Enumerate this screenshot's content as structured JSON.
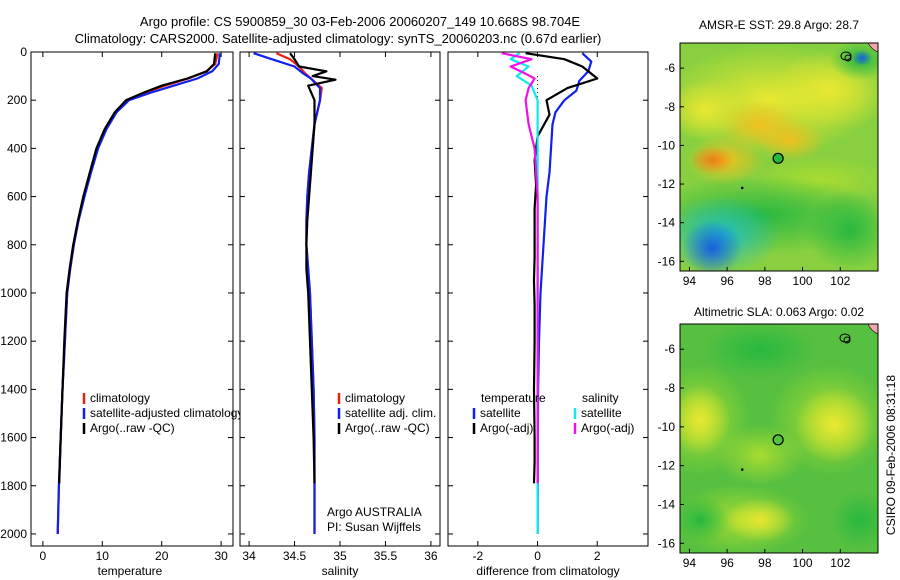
{
  "header": {
    "line1": "Argo profile: CS 5900859_30 03-Feb-2006 20060207_149 10.668S 98.704E",
    "line2": "Climatology: CARS2000. Satellite-adjusted climatology: synTS_20060203.nc (0.67d earlier)"
  },
  "colors": {
    "red": "#e8200c",
    "blue": "#1020ee",
    "black": "#000000",
    "cyan": "#10e8f0",
    "magenta": "#f010e8"
  },
  "chart_data": [
    {
      "type": "line",
      "id": "temperature",
      "xlabel": "temperature",
      "ylabel": "",
      "xlim": [
        -2,
        32
      ],
      "ylim": [
        2050,
        0
      ],
      "xticks": [
        "0",
        "10",
        "20",
        "30"
      ],
      "xtick_values": [
        0,
        10,
        20,
        30
      ],
      "yticks": [
        "0",
        "200",
        "400",
        "600",
        "800",
        "1000",
        "1200",
        "1400",
        "1600",
        "1800",
        "2000"
      ],
      "ytick_values": [
        0,
        200,
        400,
        600,
        800,
        1000,
        1200,
        1400,
        1600,
        1800,
        2000
      ],
      "legend": [
        "climatology",
        "satellite-adjusted climatology",
        "Argo(..raw -QC)"
      ],
      "legend_colors": [
        "red",
        "blue",
        "black"
      ],
      "series": [
        {
          "name": "climatology",
          "color": "red",
          "x": [
            29.4,
            29.0,
            27.5,
            24.5,
            20.5,
            17,
            14,
            12.2,
            10.6,
            9.2,
            8.0,
            6.9,
            6.0,
            5.2,
            4.6,
            4.1,
            3.7,
            3.3,
            3.0,
            2.7,
            2.5
          ],
          "y": [
            5,
            50,
            80,
            110,
            140,
            170,
            200,
            250,
            320,
            400,
            500,
            600,
            700,
            800,
            900,
            1000,
            1200,
            1400,
            1600,
            1800,
            2000
          ]
        },
        {
          "name": "satellite-adjusted climatology",
          "color": "blue",
          "x": [
            29.8,
            29.6,
            28.5,
            26,
            22,
            18,
            14.5,
            12.4,
            10.7,
            9.3,
            8.1,
            7.0,
            6.0,
            5.2,
            4.6,
            4.1,
            3.7,
            3.3,
            3.0,
            2.7,
            2.5
          ],
          "y": [
            5,
            50,
            80,
            110,
            140,
            170,
            200,
            250,
            320,
            400,
            500,
            600,
            700,
            800,
            900,
            1000,
            1200,
            1400,
            1600,
            1800,
            2000
          ]
        },
        {
          "name": "Argo(..raw -QC)",
          "color": "black",
          "x": [
            29.0,
            28.8,
            27.6,
            24.3,
            20,
            16.8,
            14,
            12.1,
            10.4,
            9.0,
            7.9,
            6.8,
            5.9,
            5.1,
            4.5,
            4.0,
            3.6,
            3.3,
            3.0,
            2.75
          ],
          "y": [
            5,
            50,
            80,
            110,
            140,
            170,
            200,
            250,
            320,
            400,
            500,
            600,
            700,
            800,
            900,
            1000,
            1200,
            1400,
            1600,
            1790
          ]
        }
      ]
    },
    {
      "type": "line",
      "id": "salinity",
      "xlabel": "salinity",
      "xlim": [
        33.9,
        36.1
      ],
      "ylim": [
        2050,
        0
      ],
      "xticks": [
        "34",
        "34.5",
        "35",
        "35.5",
        "36"
      ],
      "xtick_values": [
        34,
        34.5,
        35,
        35.5,
        36
      ],
      "legend": [
        "climatology",
        "satellite adj. clim.",
        "Argo(..raw -QC)"
      ],
      "legend_colors": [
        "red",
        "blue",
        "black"
      ],
      "annotations": [
        "Argo AUSTRALIA",
        "PI: Susan Wijffels"
      ],
      "series": [
        {
          "name": "climatology",
          "color": "red",
          "x": [
            34.3,
            34.45,
            34.55,
            34.62,
            34.68,
            34.8,
            34.78,
            34.72,
            34.69,
            34.66,
            34.64,
            34.63,
            34.63,
            34.65,
            34.67,
            34.69,
            34.71,
            34.72,
            34.72
          ],
          "y": [
            5,
            30,
            60,
            90,
            110,
            150,
            200,
            300,
            400,
            500,
            600,
            700,
            800,
            900,
            1000,
            1200,
            1400,
            1600,
            2000
          ]
        },
        {
          "name": "satellite adj. clim.",
          "color": "blue",
          "x": [
            34.05,
            34.25,
            34.5,
            34.6,
            34.68,
            34.78,
            34.78,
            34.72,
            34.69,
            34.66,
            34.64,
            34.63,
            34.63,
            34.65,
            34.67,
            34.69,
            34.71,
            34.72,
            34.72
          ],
          "y": [
            5,
            30,
            60,
            90,
            110,
            150,
            200,
            300,
            400,
            500,
            600,
            700,
            800,
            900,
            1000,
            1200,
            1400,
            1600,
            2000
          ]
        },
        {
          "name": "Argo(..raw -QC)",
          "color": "black",
          "x": [
            34.45,
            34.5,
            34.55,
            34.85,
            34.7,
            34.95,
            34.65,
            34.72,
            34.72,
            34.7,
            34.68,
            34.66,
            34.64,
            34.63,
            34.63,
            34.65,
            34.67,
            34.69,
            34.71,
            34.72
          ],
          "y": [
            5,
            30,
            60,
            80,
            100,
            115,
            140,
            200,
            300,
            400,
            500,
            600,
            700,
            800,
            900,
            1000,
            1200,
            1400,
            1600,
            1790
          ]
        }
      ]
    },
    {
      "type": "line",
      "id": "difference",
      "xlabel": "difference from climatology",
      "xlim": [
        -3,
        3.7
      ],
      "ylim": [
        2050,
        0
      ],
      "xticks": [
        "-2",
        "0",
        "2"
      ],
      "xtick_values": [
        -2,
        0,
        2
      ],
      "legend_headers": [
        "temperature",
        "salinity"
      ],
      "legend": [
        "satellite",
        "Argo(-adj)",
        "satellite",
        "Argo(-adj)"
      ],
      "legend_colors": [
        "blue",
        "black",
        "cyan",
        "magenta"
      ],
      "series": [
        {
          "name": "temperature satellite",
          "color": "blue",
          "x": [
            1.5,
            1.8,
            1.7,
            1.4,
            1.3,
            0.9,
            0.6,
            0.5,
            0.45,
            0.4,
            0.3,
            0.25,
            0.2,
            0.15,
            0.1,
            0.05,
            0.02,
            0.01,
            0.0
          ],
          "y": [
            5,
            40,
            80,
            120,
            160,
            200,
            250,
            300,
            400,
            500,
            600,
            700,
            800,
            900,
            1000,
            1200,
            1400,
            1600,
            2000
          ]
        },
        {
          "name": "temperature Argo(-adj)",
          "color": "black",
          "x": [
            -0.4,
            0.9,
            1.5,
            2.0,
            1.0,
            0.3,
            0.4,
            0.0,
            -0.1,
            -0.05,
            -0.1,
            -0.1,
            -0.1,
            -0.12,
            -0.1,
            -0.1,
            -0.12,
            -0.1,
            -0.1,
            -0.12
          ],
          "y": [
            5,
            30,
            60,
            110,
            150,
            200,
            260,
            350,
            450,
            550,
            650,
            750,
            850,
            950,
            1050,
            1200,
            1400,
            1600,
            1700,
            1790
          ]
        },
        {
          "name": "salinity satellite",
          "color": "cyan",
          "x": [
            -0.6,
            -0.9,
            -0.3,
            -0.7,
            -0.2,
            0.0,
            0.0,
            0.0,
            0.0
          ],
          "y": [
            5,
            30,
            60,
            100,
            140,
            200,
            600,
            1200,
            2000
          ]
        },
        {
          "name": "salinity Argo(-adj)",
          "color": "magenta",
          "x": [
            -1.2,
            -0.2,
            -0.9,
            -0.4,
            -0.1,
            -0.3,
            -0.4,
            -0.3,
            -0.1,
            0.0,
            0.0,
            0.0
          ],
          "y": [
            5,
            30,
            60,
            90,
            110,
            150,
            200,
            300,
            400,
            600,
            1000,
            1790
          ]
        }
      ]
    },
    {
      "type": "heatmap",
      "id": "sst-map",
      "title": "AMSR-E SST: 29.8 Argo: 28.7",
      "xlim": [
        93.5,
        104
      ],
      "ylim": [
        -16.5,
        -4.7
      ],
      "xticks": [
        "94",
        "96",
        "98",
        "100",
        "102"
      ],
      "xtick_values": [
        94,
        96,
        98,
        100,
        102
      ],
      "yticks": [
        "-6",
        "-8",
        "-10",
        "-12",
        "-14",
        "-16"
      ],
      "ytick_values": [
        -6,
        -8,
        -10,
        -12,
        -14,
        -16
      ],
      "argo_position": [
        98.704,
        -10.668
      ],
      "marker": [
        96.8,
        -12.2
      ]
    },
    {
      "type": "heatmap",
      "id": "sla-map",
      "title": "Altimetric SLA: 0.063 Argo: 0.02",
      "xlim": [
        93.5,
        104
      ],
      "ylim": [
        -16.5,
        -4.7
      ],
      "xticks": [
        "94",
        "96",
        "98",
        "100",
        "102"
      ],
      "xtick_values": [
        94,
        96,
        98,
        100,
        102
      ],
      "yticks": [
        "-6",
        "-8",
        "-10",
        "-12",
        "-14",
        "-16"
      ],
      "ytick_values": [
        -6,
        -8,
        -10,
        -12,
        -14,
        -16
      ],
      "argo_position": [
        98.704,
        -10.668
      ],
      "marker": [
        96.8,
        -12.2
      ]
    }
  ],
  "footer": {
    "timestamp": "CSIRO 09-Feb-2006 08:31:18"
  }
}
